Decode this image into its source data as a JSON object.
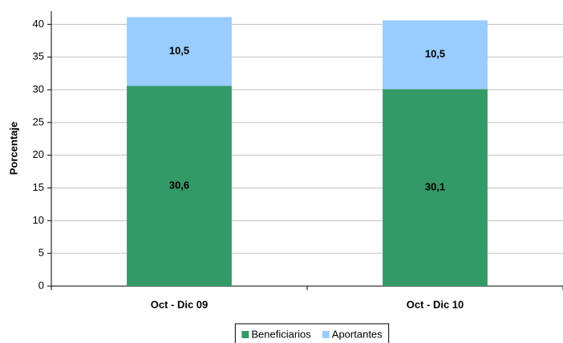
{
  "chart_data": {
    "type": "stacked_bar",
    "y_label": "Porcentaje",
    "categories": [
      "Oct - Dic 09",
      "Oct - Dic 10"
    ],
    "series": [
      {
        "name": "Beneficiarios",
        "color": "#339966",
        "values": [
          30.6,
          30.1
        ],
        "value_labels": [
          "30,6",
          "30,1"
        ]
      },
      {
        "name": "Aportantes",
        "color": "#99ccff",
        "values": [
          10.5,
          10.5
        ],
        "value_labels": [
          "10,5",
          "10,5"
        ]
      }
    ],
    "ylim": [
      0,
      42
    ],
    "yticks": [
      0,
      5,
      10,
      15,
      20,
      25,
      30,
      35,
      40
    ],
    "grid": true,
    "legend": "bottom"
  }
}
